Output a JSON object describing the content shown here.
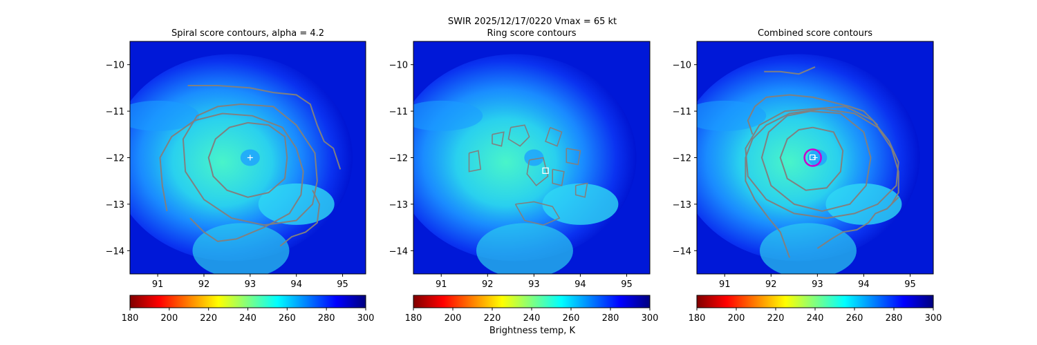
{
  "figure": {
    "suptitle_line1": "SWIR  2025/12/17/0220    Vmax = 65 kt",
    "colorbar_label": "Brightness temp, K"
  },
  "chart_data": [
    {
      "type": "heatmap",
      "title": "Spiral score contours, alpha =  4.2",
      "xlabel": "",
      "ylabel": "",
      "xlim": [
        90.4,
        95.5
      ],
      "ylim": [
        -14.5,
        -9.5
      ],
      "xticks": [
        "91",
        "92",
        "93",
        "94",
        "95"
      ],
      "xtick_values": [
        91,
        92,
        93,
        94,
        95
      ],
      "yticks": [
        "−10",
        "−11",
        "−12",
        "−13",
        "−14"
      ],
      "ytick_values": [
        -10,
        -11,
        -12,
        -13,
        -14
      ],
      "center": [
        93.0,
        -12.0
      ],
      "marker": "plus",
      "contour_color": "#808080",
      "contours": [
        [
          [
            92.95,
            -11.25
          ],
          [
            93.4,
            -11.3
          ],
          [
            93.75,
            -11.55
          ],
          [
            93.8,
            -12.0
          ],
          [
            93.75,
            -12.45
          ],
          [
            93.4,
            -12.75
          ],
          [
            92.95,
            -12.85
          ],
          [
            92.5,
            -12.7
          ],
          [
            92.2,
            -12.4
          ],
          [
            92.1,
            -12.0
          ],
          [
            92.25,
            -11.6
          ],
          [
            92.55,
            -11.35
          ],
          [
            92.95,
            -11.25
          ]
        ],
        [
          [
            92.8,
            -10.85
          ],
          [
            93.5,
            -10.9
          ],
          [
            94.0,
            -11.3
          ],
          [
            94.4,
            -11.9
          ],
          [
            94.45,
            -12.5
          ],
          [
            94.35,
            -13.0
          ],
          [
            94.0,
            -13.35
          ],
          [
            93.3,
            -13.45
          ],
          [
            92.6,
            -13.3
          ],
          [
            92.0,
            -12.9
          ],
          [
            91.6,
            -12.3
          ],
          [
            91.55,
            -11.6
          ],
          [
            91.85,
            -11.1
          ],
          [
            92.3,
            -10.9
          ],
          [
            92.8,
            -10.85
          ]
        ],
        [
          [
            91.2,
            -13.15
          ],
          [
            91.1,
            -12.6
          ],
          [
            91.05,
            -12.0
          ],
          [
            91.3,
            -11.55
          ],
          [
            91.8,
            -11.2
          ],
          [
            92.4,
            -11.05
          ],
          [
            93.05,
            -11.1
          ],
          [
            93.7,
            -11.35
          ],
          [
            94.0,
            -11.8
          ],
          [
            94.15,
            -12.3
          ],
          [
            94.1,
            -12.8
          ],
          [
            93.85,
            -13.2
          ],
          [
            93.3,
            -13.5
          ],
          [
            92.7,
            -13.75
          ],
          [
            92.3,
            -13.8
          ],
          [
            92.0,
            -13.6
          ],
          [
            91.7,
            -13.3
          ]
        ],
        [
          [
            91.65,
            -10.45
          ],
          [
            92.3,
            -10.45
          ],
          [
            93.0,
            -10.5
          ],
          [
            93.5,
            -10.6
          ],
          [
            94.0,
            -10.65
          ],
          [
            94.3,
            -10.85
          ],
          [
            94.45,
            -11.3
          ],
          [
            94.6,
            -11.65
          ],
          [
            94.8,
            -11.8
          ],
          [
            94.95,
            -12.25
          ]
        ],
        [
          [
            93.65,
            -13.9
          ],
          [
            93.9,
            -13.7
          ],
          [
            94.2,
            -13.6
          ],
          [
            94.45,
            -13.4
          ],
          [
            94.5,
            -13.0
          ],
          [
            94.35,
            -12.7
          ]
        ]
      ]
    },
    {
      "type": "heatmap",
      "title": "Ring score contours",
      "xlabel": "",
      "ylabel": "",
      "xlim": [
        90.4,
        95.5
      ],
      "ylim": [
        -14.5,
        -9.5
      ],
      "xticks": [
        "91",
        "92",
        "93",
        "94",
        "95"
      ],
      "xtick_values": [
        91,
        92,
        93,
        94,
        95
      ],
      "yticks": [
        "−10",
        "−11",
        "−12",
        "−13",
        "−14"
      ],
      "ytick_values": [
        -10,
        -11,
        -12,
        -13,
        -14
      ],
      "center": [
        93.25,
        -12.28
      ],
      "marker": "square",
      "contour_color": "#808080",
      "contours": [
        [
          [
            92.5,
            -11.35
          ],
          [
            92.8,
            -11.3
          ],
          [
            92.9,
            -11.55
          ],
          [
            92.7,
            -11.75
          ],
          [
            92.45,
            -11.6
          ],
          [
            92.5,
            -11.35
          ]
        ],
        [
          [
            93.35,
            -11.35
          ],
          [
            93.6,
            -11.45
          ],
          [
            93.5,
            -11.75
          ],
          [
            93.25,
            -11.65
          ],
          [
            93.35,
            -11.35
          ]
        ],
        [
          [
            93.7,
            -11.8
          ],
          [
            94.0,
            -11.85
          ],
          [
            93.95,
            -12.15
          ],
          [
            93.7,
            -12.1
          ],
          [
            93.7,
            -11.8
          ]
        ],
        [
          [
            92.9,
            -12.05
          ],
          [
            93.2,
            -12.0
          ],
          [
            93.3,
            -12.4
          ],
          [
            93.05,
            -12.6
          ],
          [
            92.85,
            -12.35
          ],
          [
            92.9,
            -12.05
          ]
        ],
        [
          [
            93.4,
            -12.25
          ],
          [
            93.65,
            -12.3
          ],
          [
            93.6,
            -12.6
          ],
          [
            93.4,
            -12.55
          ],
          [
            93.4,
            -12.25
          ]
        ],
        [
          [
            92.6,
            -13.0
          ],
          [
            93.0,
            -12.95
          ],
          [
            93.4,
            -13.05
          ],
          [
            93.55,
            -13.3
          ],
          [
            93.2,
            -13.45
          ],
          [
            92.8,
            -13.35
          ],
          [
            92.6,
            -13.0
          ]
        ],
        [
          [
            91.6,
            -11.9
          ],
          [
            91.8,
            -11.85
          ],
          [
            91.85,
            -12.25
          ],
          [
            91.6,
            -12.3
          ],
          [
            91.6,
            -11.9
          ]
        ],
        [
          [
            92.1,
            -11.5
          ],
          [
            92.35,
            -11.45
          ],
          [
            92.3,
            -11.75
          ],
          [
            92.1,
            -11.7
          ],
          [
            92.1,
            -11.5
          ]
        ],
        [
          [
            93.9,
            -12.6
          ],
          [
            94.15,
            -12.55
          ],
          [
            94.1,
            -12.85
          ],
          [
            93.9,
            -12.8
          ],
          [
            93.9,
            -12.6
          ]
        ]
      ]
    },
    {
      "type": "heatmap",
      "title": "Combined score contours",
      "xlabel": "",
      "ylabel": "",
      "xlim": [
        90.4,
        95.5
      ],
      "ylim": [
        -14.5,
        -9.5
      ],
      "xticks": [
        "91",
        "92",
        "93",
        "94",
        "95"
      ],
      "xtick_values": [
        91,
        92,
        93,
        94,
        95
      ],
      "yticks": [
        "−10",
        "−11",
        "−12",
        "−13",
        "−14"
      ],
      "ytick_values": [
        -10,
        -11,
        -12,
        -13,
        -14
      ],
      "center": [
        92.9,
        -12.0
      ],
      "marker": "square-plus-circle",
      "circle_color": "#cc00cc",
      "contour_color": "#808080",
      "contours": [
        [
          [
            92.9,
            -11.35
          ],
          [
            93.35,
            -11.45
          ],
          [
            93.55,
            -11.85
          ],
          [
            93.5,
            -12.3
          ],
          [
            93.2,
            -12.65
          ],
          [
            92.75,
            -12.7
          ],
          [
            92.35,
            -12.45
          ],
          [
            92.2,
            -12.0
          ],
          [
            92.35,
            -11.6
          ],
          [
            92.6,
            -11.4
          ],
          [
            92.9,
            -11.35
          ]
        ],
        [
          [
            92.85,
            -11.0
          ],
          [
            93.5,
            -11.05
          ],
          [
            94.0,
            -11.45
          ],
          [
            94.15,
            -12.0
          ],
          [
            94.05,
            -12.6
          ],
          [
            93.7,
            -13.0
          ],
          [
            93.1,
            -13.15
          ],
          [
            92.5,
            -13.0
          ],
          [
            92.0,
            -12.6
          ],
          [
            91.8,
            -12.0
          ],
          [
            91.95,
            -11.45
          ],
          [
            92.35,
            -11.1
          ],
          [
            92.85,
            -11.0
          ]
        ],
        [
          [
            92.9,
            -10.95
          ],
          [
            93.6,
            -10.9
          ],
          [
            94.2,
            -11.2
          ],
          [
            94.55,
            -11.65
          ],
          [
            94.75,
            -12.1
          ],
          [
            94.7,
            -12.6
          ],
          [
            94.3,
            -13.0
          ],
          [
            93.8,
            -13.2
          ],
          [
            93.2,
            -13.3
          ],
          [
            92.5,
            -13.2
          ],
          [
            91.9,
            -12.9
          ],
          [
            91.5,
            -12.4
          ],
          [
            91.45,
            -11.8
          ],
          [
            91.75,
            -11.3
          ],
          [
            92.3,
            -11.0
          ],
          [
            92.9,
            -10.95
          ]
        ],
        [
          [
            92.4,
            -14.15
          ],
          [
            92.2,
            -13.6
          ],
          [
            91.95,
            -13.3
          ],
          [
            91.65,
            -12.9
          ],
          [
            91.45,
            -12.5
          ],
          [
            91.45,
            -12.0
          ],
          [
            91.6,
            -11.6
          ],
          [
            91.9,
            -11.3
          ],
          [
            92.4,
            -11.05
          ],
          [
            93.1,
            -10.95
          ],
          [
            93.8,
            -11.05
          ],
          [
            94.3,
            -11.35
          ],
          [
            94.6,
            -11.8
          ],
          [
            94.75,
            -12.3
          ],
          [
            94.75,
            -12.75
          ],
          [
            94.6,
            -13.0
          ]
        ],
        [
          [
            91.6,
            -11.5
          ],
          [
            91.5,
            -11.2
          ],
          [
            91.65,
            -10.9
          ],
          [
            91.9,
            -10.7
          ],
          [
            92.4,
            -10.65
          ],
          [
            92.9,
            -10.7
          ],
          [
            93.3,
            -10.8
          ],
          [
            93.7,
            -10.9
          ],
          [
            94.0,
            -11.0
          ],
          [
            94.3,
            -11.3
          ]
        ],
        [
          [
            91.85,
            -10.15
          ],
          [
            92.2,
            -10.15
          ],
          [
            92.6,
            -10.2
          ],
          [
            92.95,
            -10.05
          ]
        ],
        [
          [
            93.0,
            -13.95
          ],
          [
            93.3,
            -13.75
          ],
          [
            93.55,
            -13.6
          ],
          [
            93.85,
            -13.55
          ],
          [
            94.1,
            -13.4
          ],
          [
            94.25,
            -13.2
          ],
          [
            94.5,
            -13.1
          ],
          [
            94.75,
            -12.85
          ]
        ]
      ]
    }
  ],
  "colorbar": {
    "range": [
      180,
      300
    ],
    "ticks": [
      "180",
      "200",
      "220",
      "240",
      "260",
      "280",
      "300"
    ],
    "tick_values": [
      180,
      200,
      220,
      240,
      260,
      280,
      300
    ],
    "colormap": "jet_r"
  }
}
